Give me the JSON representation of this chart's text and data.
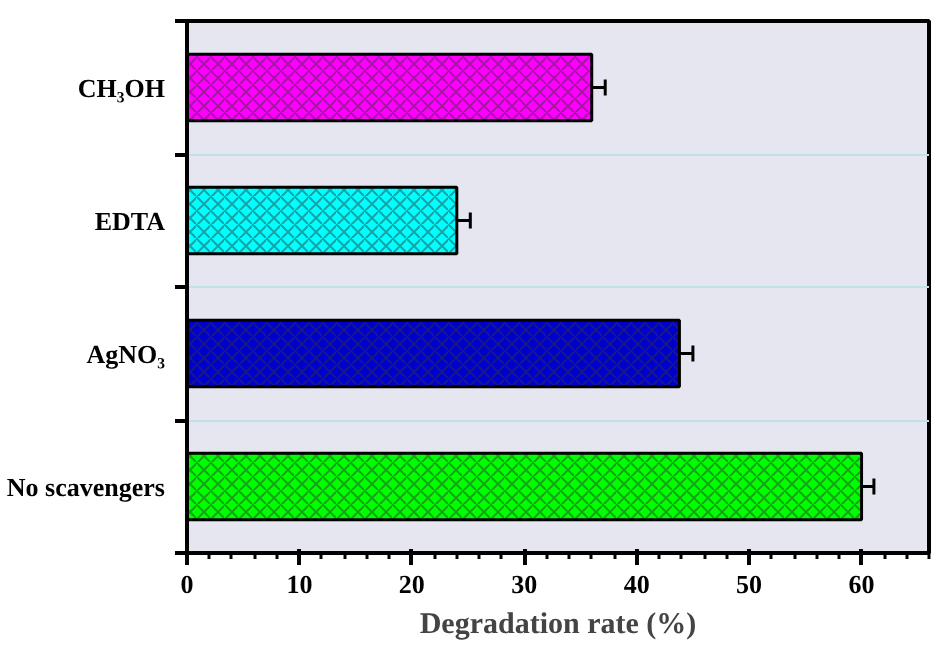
{
  "chart_data": {
    "type": "bar",
    "orientation": "horizontal",
    "xlabel": "Degradation rate (%)",
    "categories": [
      "CH₃OH",
      "EDTA",
      "AgNO₃",
      "No scavengers"
    ],
    "values": [
      36,
      24,
      43.8,
      60
    ],
    "colors": [
      "#ff00ff",
      "#00ffff",
      "#0000cc",
      "#00ff00"
    ],
    "errors": [
      1.2,
      1.2,
      1.2,
      1.1
    ],
    "xlim": [
      0,
      66
    ],
    "xticks": [
      0,
      10,
      20,
      30,
      40,
      50,
      60
    ],
    "grid": "y"
  }
}
